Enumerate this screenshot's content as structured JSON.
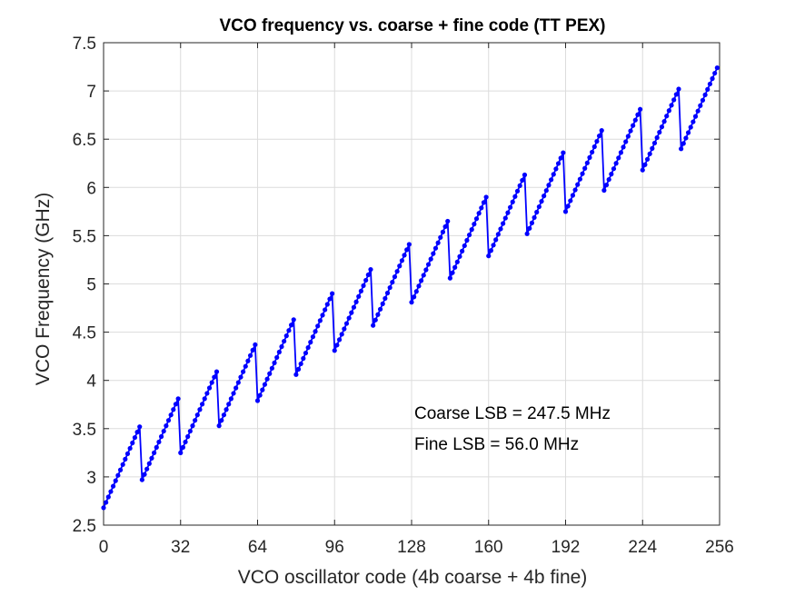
{
  "chart_data": {
    "type": "line",
    "title": "VCO frequency vs. coarse + fine code (TT PEX)",
    "xlabel": "VCO oscillator code (4b coarse + 4b fine)",
    "ylabel": "VCO Frequency (GHz)",
    "xlim": [
      0,
      256
    ],
    "ylim": [
      2.5,
      7.5
    ],
    "xticks": [
      0,
      32,
      64,
      96,
      128,
      160,
      192,
      224,
      256
    ],
    "yticks": [
      2.5,
      3,
      3.5,
      4,
      4.5,
      5,
      5.5,
      6,
      6.5,
      7,
      7.5
    ],
    "grid": true,
    "series_color": "#0000ff",
    "marker": "circle",
    "segment_start_frequencies_ghz": [
      2.68,
      2.97,
      3.25,
      3.53,
      3.79,
      4.06,
      4.31,
      4.57,
      4.81,
      5.06,
      5.29,
      5.52,
      5.75,
      5.97,
      6.18,
      6.4
    ],
    "fine_step_ghz": 0.056,
    "fine_codes_per_segment": 16,
    "annotations": [
      "Coarse LSB = 247.5 MHz",
      "Fine LSB = 56.0 MHz"
    ]
  }
}
